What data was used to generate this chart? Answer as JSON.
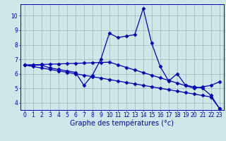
{
  "x": [
    0,
    1,
    2,
    3,
    4,
    5,
    6,
    7,
    8,
    9,
    10,
    11,
    12,
    13,
    14,
    15,
    16,
    17,
    18,
    19,
    20,
    21,
    22,
    23
  ],
  "y_main": [
    6.6,
    6.6,
    6.6,
    6.4,
    6.3,
    6.2,
    6.1,
    5.2,
    5.9,
    7.0,
    8.8,
    8.5,
    8.6,
    8.7,
    10.5,
    8.1,
    6.5,
    5.5,
    6.0,
    5.2,
    5.1,
    5.0,
    4.5,
    3.6
  ],
  "y_line1": [
    6.6,
    6.62,
    6.64,
    6.66,
    6.68,
    6.7,
    6.72,
    6.74,
    6.76,
    6.78,
    6.8,
    6.62,
    6.44,
    6.26,
    6.08,
    5.9,
    5.72,
    5.54,
    5.36,
    5.18,
    5.0,
    5.1,
    5.2,
    5.45
  ],
  "y_line2": [
    6.6,
    6.5,
    6.4,
    6.3,
    6.2,
    6.1,
    6.0,
    5.9,
    5.8,
    5.7,
    5.6,
    5.5,
    5.4,
    5.3,
    5.2,
    5.1,
    5.0,
    4.9,
    4.8,
    4.7,
    4.6,
    4.5,
    4.4,
    3.6
  ],
  "ylim": [
    3.5,
    10.8
  ],
  "xlim": [
    -0.5,
    23.5
  ],
  "yticks": [
    4,
    5,
    6,
    7,
    8,
    9,
    10
  ],
  "xticks": [
    0,
    1,
    2,
    3,
    4,
    5,
    6,
    7,
    8,
    9,
    10,
    11,
    12,
    13,
    14,
    15,
    16,
    17,
    18,
    19,
    20,
    21,
    22,
    23
  ],
  "xlabel": "Graphe des températures (°c)",
  "line_color": "#0000bb",
  "bg_color": "#cce8e8",
  "grid_color": "#99bbbb",
  "marker": "D",
  "marker_size": 2.5,
  "linewidth": 0.9,
  "xlabel_fontsize": 7,
  "tick_fontsize": 5.5
}
